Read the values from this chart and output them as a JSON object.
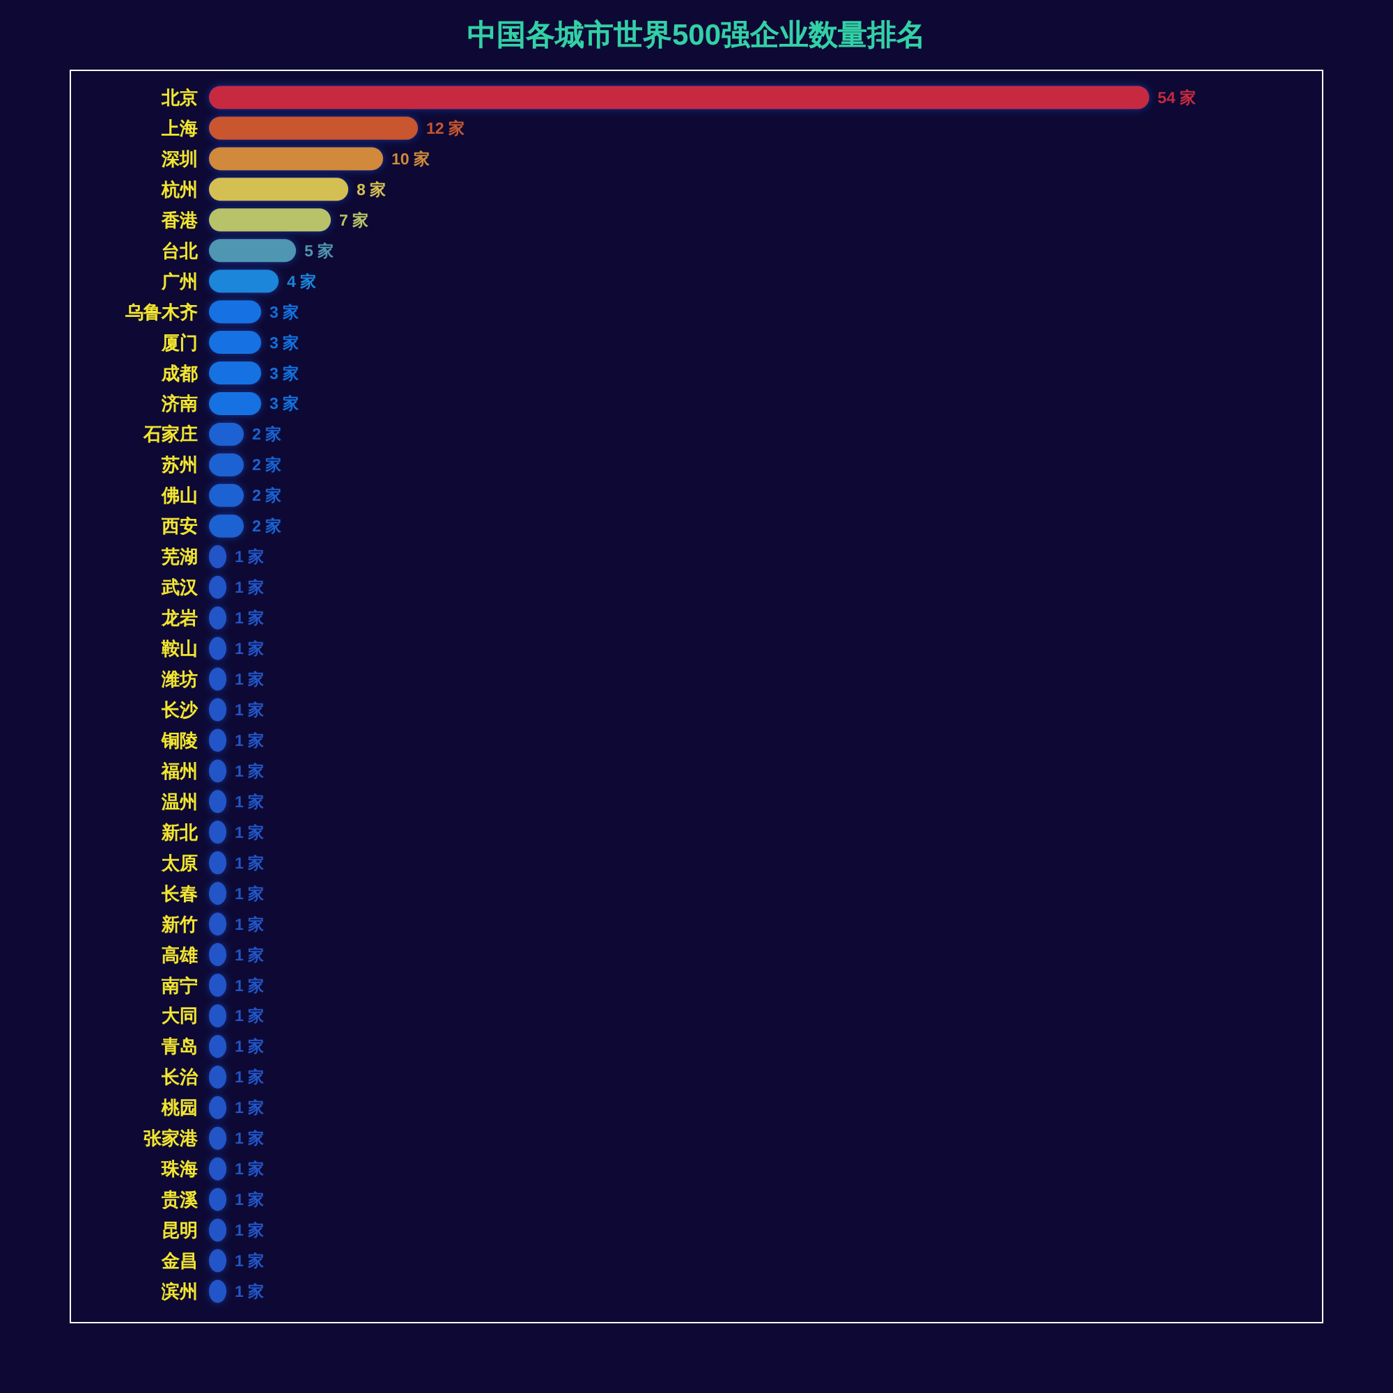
{
  "chart_data": {
    "type": "bar",
    "orientation": "horizontal",
    "title": "中国各城市世界500强企业数量排名",
    "categories": [
      "北京",
      "上海",
      "深圳",
      "杭州",
      "香港",
      "台北",
      "广州",
      "乌鲁木齐",
      "厦门",
      "成都",
      "济南",
      "石家庄",
      "苏州",
      "佛山",
      "西安",
      "芜湖",
      "武汉",
      "龙岩",
      "鞍山",
      "潍坊",
      "长沙",
      "铜陵",
      "福州",
      "温州",
      "新北",
      "太原",
      "长春",
      "新竹",
      "高雄",
      "南宁",
      "大同",
      "青岛",
      "长治",
      "桃园",
      "张家港",
      "珠海",
      "贵溪",
      "昆明",
      "金昌",
      "滨州"
    ],
    "values": [
      54,
      12,
      10,
      8,
      7,
      5,
      4,
      3,
      3,
      3,
      3,
      2,
      2,
      2,
      2,
      1,
      1,
      1,
      1,
      1,
      1,
      1,
      1,
      1,
      1,
      1,
      1,
      1,
      1,
      1,
      1,
      1,
      1,
      1,
      1,
      1,
      1,
      1,
      1,
      1
    ],
    "value_labels": [
      "54 家",
      "12 家",
      "10 家",
      "8 家",
      "7 家",
      "5 家",
      "4 家",
      "3 家",
      "3 家",
      "3 家",
      "3 家",
      "2 家",
      "2 家",
      "2 家",
      "2 家",
      "1 家",
      "1 家",
      "1 家",
      "1 家",
      "1 家",
      "1 家",
      "1 家",
      "1 家",
      "1 家",
      "1 家",
      "1 家",
      "1 家",
      "1 家",
      "1 家",
      "1 家",
      "1 家",
      "1 家",
      "1 家",
      "1 家",
      "1 家",
      "1 家",
      "1 家",
      "1 家",
      "1 家",
      "1 家"
    ],
    "colors": [
      "#c72a40",
      "#c9572e",
      "#d18a3a",
      "#d4bf52",
      "#b8c267",
      "#4f96b2",
      "#1a86da",
      "#1272e2",
      "#1272e2",
      "#1272e2",
      "#1272e2",
      "#1a62d2",
      "#1a62d2",
      "#1a62d2",
      "#1a62d2",
      "#2256c8",
      "#2256c8",
      "#2256c8",
      "#2256c8",
      "#2256c8",
      "#2256c8",
      "#2256c8",
      "#2256c8",
      "#2256c8",
      "#2256c8",
      "#2256c8",
      "#2256c8",
      "#2256c8",
      "#2256c8",
      "#2256c8",
      "#2256c8",
      "#2256c8",
      "#2256c8",
      "#2256c8",
      "#2256c8",
      "#2256c8",
      "#2256c8",
      "#2256c8",
      "#2256c8",
      "#2256c8"
    ],
    "tick_labels": "y"
  }
}
